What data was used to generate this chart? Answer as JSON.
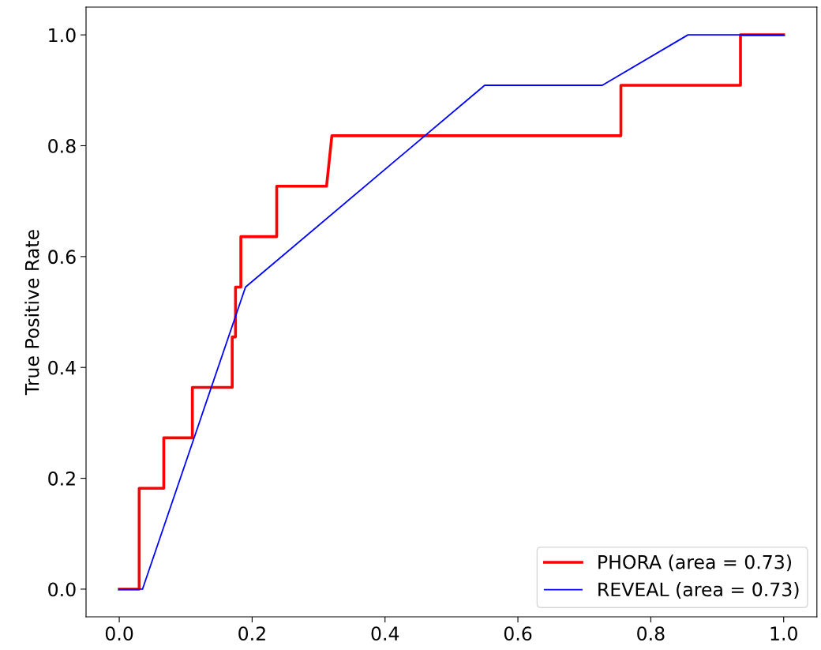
{
  "chart_data": {
    "type": "line",
    "ylabel": "True Positive Rate",
    "series": [
      {
        "name": "PHORA (area = 0.73)",
        "color": "#ff0000",
        "x": [
          0,
          0.03,
          0.03,
          0.067,
          0.067,
          0.11,
          0.11,
          0.17,
          0.17,
          0.175,
          0.175,
          0.183,
          0.183,
          0.237,
          0.237,
          0.312,
          0.32,
          0.755,
          0.755,
          0.935,
          0.935,
          1
        ],
        "values": [
          0,
          0,
          0.182,
          0.182,
          0.273,
          0.273,
          0.364,
          0.364,
          0.455,
          0.455,
          0.545,
          0.545,
          0.636,
          0.636,
          0.727,
          0.727,
          0.818,
          0.818,
          0.909,
          0.909,
          1,
          1
        ]
      },
      {
        "name": "REVEAL (area = 0.73)",
        "color": "#0000ff",
        "x": [
          0,
          0.035,
          0.19,
          0.55,
          0.727,
          0.856,
          1
        ],
        "values": [
          0,
          0,
          0.545,
          0.909,
          0.909,
          1,
          1
        ]
      }
    ],
    "xlim": [
      -0.05,
      1.05
    ],
    "ylim": [
      -0.05,
      1.05
    ],
    "xticks": [
      {
        "value": 0,
        "label": "0.0"
      },
      0.2,
      0.4,
      0.6,
      0.8,
      {
        "value": 1,
        "label": "1.0"
      }
    ],
    "yticks": [
      {
        "value": 0,
        "label": "0.0"
      },
      0.2,
      0.4,
      0.6,
      0.8,
      {
        "value": 1,
        "label": "1.0"
      }
    ],
    "legend": "lower right",
    "grid": false
  }
}
